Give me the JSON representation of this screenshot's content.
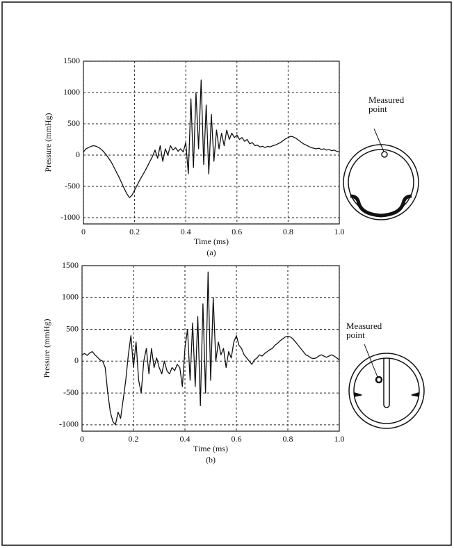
{
  "chart_data": [
    {
      "type": "line",
      "caption": "(a)",
      "annotation": "Measured point",
      "x_label": "Time (ms)",
      "y_label": "Pressure (mmHg)",
      "x": [
        0,
        0.01,
        0.02,
        0.03,
        0.04,
        0.05,
        0.06,
        0.07,
        0.08,
        0.09,
        0.1,
        0.11,
        0.12,
        0.13,
        0.14,
        0.15,
        0.16,
        0.17,
        0.18,
        0.19,
        0.2,
        0.21,
        0.22,
        0.23,
        0.24,
        0.25,
        0.26,
        0.27,
        0.28,
        0.29,
        0.3,
        0.31,
        0.32,
        0.33,
        0.34,
        0.35,
        0.36,
        0.37,
        0.38,
        0.39,
        0.4,
        0.41,
        0.42,
        0.43,
        0.44,
        0.45,
        0.46,
        0.47,
        0.48,
        0.49,
        0.5,
        0.51,
        0.52,
        0.53,
        0.54,
        0.55,
        0.56,
        0.57,
        0.58,
        0.59,
        0.6,
        0.61,
        0.62,
        0.63,
        0.64,
        0.65,
        0.66,
        0.67,
        0.68,
        0.69,
        0.7,
        0.71,
        0.72,
        0.73,
        0.74,
        0.75,
        0.76,
        0.77,
        0.78,
        0.79,
        0.8,
        0.81,
        0.82,
        0.83,
        0.84,
        0.85,
        0.86,
        0.87,
        0.88,
        0.89,
        0.9,
        0.91,
        0.92,
        0.93,
        0.94,
        0.95,
        0.96,
        0.97,
        0.98,
        0.99,
        1
      ],
      "series": [
        {
          "color": "#111111",
          "values": [
            50,
            100,
            120,
            140,
            150,
            140,
            120,
            90,
            50,
            0,
            -60,
            -120,
            -200,
            -280,
            -360,
            -450,
            -540,
            -620,
            -680,
            -640,
            -560,
            -480,
            -400,
            -330,
            -260,
            -180,
            -100,
            -20,
            80,
            -50,
            150,
            -100,
            100,
            0,
            150,
            80,
            120,
            60,
            100,
            50,
            200,
            -300,
            900,
            -200,
            1000,
            100,
            1200,
            -150,
            800,
            -300,
            650,
            -100,
            400,
            100,
            350,
            150,
            400,
            250,
            350,
            280,
            320,
            250,
            280,
            220,
            250,
            180,
            200,
            150,
            160,
            130,
            140,
            120,
            140,
            130,
            150,
            160,
            180,
            200,
            230,
            260,
            280,
            300,
            290,
            270,
            240,
            210,
            180,
            160,
            140,
            120,
            110,
            100,
            110,
            90,
            100,
            80,
            90,
            70,
            80,
            60,
            50
          ]
        }
      ],
      "xlim": [
        0,
        1
      ],
      "xticks": [
        0,
        0.2,
        0.4,
        0.6,
        0.8,
        {
          "value": 1,
          "label": "1.0"
        }
      ],
      "ylim": [
        -1100,
        1500
      ],
      "yticks": [
        -1000,
        -500,
        0,
        500,
        1000,
        1500
      ],
      "grid": true
    },
    {
      "type": "line",
      "caption": "(b)",
      "annotation": "Measured point",
      "x_label": "Time (ms)",
      "y_label": "Pressure (mmHg)",
      "x": [
        0,
        0.01,
        0.02,
        0.03,
        0.04,
        0.05,
        0.06,
        0.07,
        0.08,
        0.09,
        0.1,
        0.11,
        0.12,
        0.13,
        0.14,
        0.15,
        0.16,
        0.17,
        0.18,
        0.19,
        0.2,
        0.21,
        0.22,
        0.23,
        0.24,
        0.25,
        0.26,
        0.27,
        0.28,
        0.29,
        0.3,
        0.31,
        0.32,
        0.33,
        0.34,
        0.35,
        0.36,
        0.37,
        0.38,
        0.39,
        0.4,
        0.41,
        0.42,
        0.43,
        0.44,
        0.45,
        0.46,
        0.47,
        0.48,
        0.49,
        0.5,
        0.51,
        0.52,
        0.53,
        0.54,
        0.55,
        0.56,
        0.57,
        0.58,
        0.59,
        0.6,
        0.61,
        0.62,
        0.63,
        0.64,
        0.65,
        0.66,
        0.67,
        0.68,
        0.69,
        0.7,
        0.71,
        0.72,
        0.73,
        0.74,
        0.75,
        0.76,
        0.77,
        0.78,
        0.79,
        0.8,
        0.81,
        0.82,
        0.83,
        0.84,
        0.85,
        0.86,
        0.87,
        0.88,
        0.89,
        0.9,
        0.91,
        0.92,
        0.93,
        0.94,
        0.95,
        0.96,
        0.97,
        0.98,
        0.99,
        1
      ],
      "series": [
        {
          "color": "#111111",
          "values": [
            100,
            120,
            90,
            130,
            150,
            100,
            60,
            20,
            0,
            -100,
            -500,
            -800,
            -950,
            -1000,
            -800,
            -900,
            -600,
            -300,
            100,
            400,
            -100,
            300,
            -300,
            -500,
            0,
            200,
            -200,
            200,
            -100,
            50,
            -100,
            -200,
            0,
            -150,
            -200,
            -100,
            -150,
            -50,
            -100,
            -400,
            200,
            500,
            -300,
            600,
            -400,
            700,
            -700,
            900,
            -500,
            1400,
            -300,
            1000,
            0,
            300,
            100,
            200,
            -100,
            150,
            50,
            300,
            400,
            250,
            200,
            100,
            50,
            0,
            -50,
            20,
            50,
            100,
            80,
            120,
            150,
            180,
            200,
            250,
            280,
            320,
            350,
            380,
            390,
            380,
            350,
            300,
            250,
            200,
            150,
            100,
            80,
            50,
            40,
            50,
            80,
            100,
            80,
            60,
            80,
            100,
            80,
            50,
            20
          ]
        }
      ],
      "xlim": [
        0,
        1
      ],
      "xticks": [
        0,
        0.2,
        0.4,
        0.6,
        0.8,
        {
          "value": 1,
          "label": "1.0"
        }
      ],
      "ylim": [
        -1100,
        1500
      ],
      "yticks": [
        -1000,
        -500,
        0,
        500,
        1000,
        1500
      ],
      "grid": true
    }
  ]
}
